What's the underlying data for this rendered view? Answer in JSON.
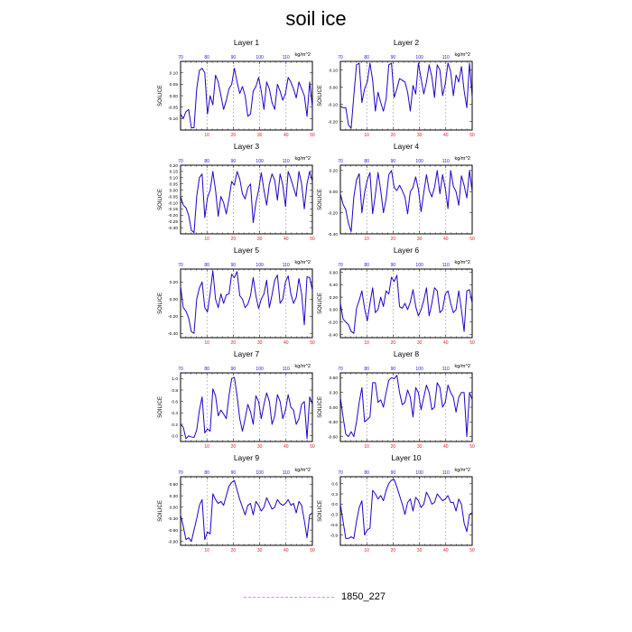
{
  "title": "soil ice",
  "legend": {
    "label": "1850_227",
    "color": "#d38be0"
  },
  "colors": {
    "line": "#2400c8",
    "bottom_ticks": "#e02020",
    "top_ticks": "#2020e0",
    "gridline": "#999999"
  },
  "chart_data": [
    {
      "type": "line",
      "title": "Layer 1",
      "ylabel": "SOILICE",
      "top_units": "kg/m^2",
      "xlim": [
        0,
        50
      ],
      "top_xlim": [
        70,
        120
      ],
      "x_ticks": [
        "10",
        "20",
        "30",
        "40",
        "50"
      ],
      "top_ticks": [
        "70",
        "80",
        "90",
        "100",
        "110"
      ],
      "ylim": [
        -0.15,
        0.15
      ],
      "y_ticks": [
        -0.1,
        -0.05,
        0.0,
        0.05,
        0.1
      ],
      "y_tick_labels": [
        "-0.10",
        "-0.05",
        "0.00",
        "0.05",
        "0.10"
      ],
      "series": [
        {
          "values": [
            -0.08,
            -0.1,
            -0.07,
            -0.06,
            -0.14,
            -0.14,
            0.03,
            0.11,
            0.12,
            0.1,
            -0.08,
            0.0,
            -0.04,
            0.09,
            0.06,
            0.0,
            -0.06,
            -0.02,
            0.03,
            0.05,
            0.12,
            0.06,
            0.01,
            0.04,
            0.0,
            -0.09,
            -0.08,
            0.02,
            0.04,
            0.08,
            0.02,
            -0.06,
            0.06,
            0.03,
            -0.03,
            -0.06,
            0.05,
            0.02,
            -0.02,
            0.01,
            0.08,
            0.06,
            0.03,
            -0.01,
            0.06,
            0.03,
            0.0,
            -0.09,
            0.06,
            -0.05
          ]
        }
      ]
    },
    {
      "type": "line",
      "title": "Layer 2",
      "ylabel": "SOILICE",
      "top_units": "kg/m^2",
      "xlim": [
        0,
        50
      ],
      "top_xlim": [
        70,
        120
      ],
      "x_ticks": [
        "10",
        "20",
        "30",
        "40",
        "50"
      ],
      "top_ticks": [
        "70",
        "80",
        "90",
        "100",
        "110"
      ],
      "ylim": [
        -0.25,
        0.15
      ],
      "y_ticks": [
        -0.2,
        -0.1,
        0.0,
        0.1
      ],
      "y_tick_labels": [
        "-0.20",
        "-0.10",
        "0.00",
        "0.10"
      ],
      "series": [
        {
          "values": [
            -0.11,
            -0.12,
            -0.12,
            -0.22,
            -0.24,
            -0.05,
            0.13,
            0.14,
            -0.09,
            -0.01,
            0.03,
            0.14,
            0.04,
            -0.14,
            -0.03,
            -0.09,
            -0.14,
            -0.07,
            0.13,
            0.14,
            -0.06,
            -0.01,
            0.05,
            0.04,
            0.03,
            -0.03,
            -0.14,
            0.01,
            -0.04,
            0.14,
            0.05,
            -0.04,
            0.03,
            0.13,
            0.06,
            -0.06,
            0.13,
            0.1,
            -0.05,
            0.02,
            0.14,
            0.09,
            -0.05,
            0.07,
            0.03,
            0.12,
            -0.02,
            -0.12,
            0.14,
            -0.06
          ]
        }
      ]
    },
    {
      "type": "line",
      "title": "Layer 3",
      "ylabel": "SOILICE",
      "top_units": "kg/m^2",
      "xlim": [
        0,
        50
      ],
      "top_xlim": [
        70,
        120
      ],
      "x_ticks": [
        "10",
        "20",
        "30",
        "40",
        "50"
      ],
      "top_ticks": [
        "70",
        "80",
        "90",
        "100",
        "110"
      ],
      "ylim": [
        -0.35,
        0.2
      ],
      "y_ticks": [
        -0.3,
        -0.25,
        -0.2,
        -0.15,
        -0.1,
        -0.05,
        0.0,
        0.05,
        0.1,
        0.15,
        0.2
      ],
      "y_tick_labels": [
        "-0.30",
        "-0.25",
        "-0.20",
        "-0.15",
        "-0.10",
        "-0.05",
        "0.00",
        "0.05",
        "0.10",
        "0.15",
        "0.20"
      ],
      "series": [
        {
          "values": [
            -0.05,
            -0.12,
            -0.14,
            -0.2,
            -0.32,
            -0.34,
            -0.05,
            0.1,
            0.13,
            -0.22,
            -0.06,
            0.0,
            0.15,
            0.0,
            -0.21,
            -0.05,
            -0.1,
            -0.19,
            -0.07,
            0.07,
            0.04,
            0.15,
            0.09,
            -0.03,
            -0.07,
            0.02,
            0.05,
            -0.26,
            -0.1,
            0.0,
            0.14,
            0.0,
            -0.12,
            0.05,
            0.13,
            0.08,
            -0.08,
            0.13,
            0.04,
            -0.13,
            0.15,
            0.09,
            0.02,
            -0.05,
            0.15,
            0.05,
            -0.15,
            0.05,
            0.15,
            0.07
          ]
        }
      ]
    },
    {
      "type": "line",
      "title": "Layer 4",
      "ylabel": "SOILICE",
      "top_units": "kg/m^2",
      "xlim": [
        0,
        50
      ],
      "top_xlim": [
        70,
        120
      ],
      "x_ticks": [
        "10",
        "20",
        "30",
        "40",
        "50"
      ],
      "top_ticks": [
        "70",
        "80",
        "90",
        "100",
        "110"
      ],
      "ylim": [
        -0.4,
        0.25
      ],
      "y_ticks": [
        -0.4,
        -0.2,
        0.0,
        0.2
      ],
      "y_tick_labels": [
        "-0.40",
        "-0.20",
        "0.00",
        "0.20"
      ],
      "series": [
        {
          "values": [
            -0.02,
            -0.12,
            -0.17,
            -0.3,
            -0.38,
            -0.05,
            0.11,
            0.17,
            -0.2,
            -0.01,
            0.11,
            0.18,
            -0.21,
            -0.03,
            0.18,
            0.01,
            -0.2,
            -0.07,
            0.16,
            0.2,
            0.04,
            0.01,
            0.06,
            0.01,
            -0.05,
            -0.21,
            0.0,
            0.04,
            0.14,
            0.02,
            -0.19,
            -0.01,
            0.16,
            0.01,
            -0.05,
            0.04,
            0.2,
            -0.02,
            0.16,
            0.03,
            -0.16,
            0.2,
            0.05,
            0.0,
            -0.13,
            0.15,
            0.06,
            -0.06,
            0.2,
            0.0
          ]
        }
      ]
    },
    {
      "type": "line",
      "title": "Layer 5",
      "ylabel": "SOILICE",
      "top_units": "kg/m^2",
      "xlim": [
        0,
        50
      ],
      "top_xlim": [
        70,
        120
      ],
      "x_ticks": [
        "10",
        "20",
        "30",
        "40",
        "50"
      ],
      "top_ticks": [
        "70",
        "80",
        "90",
        "100",
        "110"
      ],
      "ylim": [
        -0.45,
        0.35
      ],
      "y_ticks": [
        -0.4,
        -0.2,
        0.0,
        0.2
      ],
      "y_tick_labels": [
        "-0.40",
        "-0.20",
        "0.00",
        "0.20"
      ],
      "series": [
        {
          "values": [
            0.15,
            -0.1,
            -0.14,
            -0.22,
            -0.38,
            -0.4,
            0.0,
            0.13,
            0.2,
            -0.1,
            -0.15,
            0.07,
            0.33,
            0.0,
            -0.1,
            0.06,
            -0.05,
            0.05,
            0.06,
            0.29,
            0.25,
            0.32,
            0.04,
            0.0,
            -0.1,
            -0.06,
            0.04,
            0.25,
            0.04,
            -0.11,
            0.0,
            0.06,
            0.22,
            -0.1,
            0.05,
            0.22,
            0.28,
            -0.05,
            0.0,
            0.2,
            0.27,
            0.06,
            -0.05,
            0.02,
            0.24,
            0.06,
            -0.3,
            0.26,
            0.25,
            0.1
          ]
        }
      ]
    },
    {
      "type": "line",
      "title": "Layer 6",
      "ylabel": "SOILICE",
      "top_units": "kg/m^2",
      "xlim": [
        0,
        50
      ],
      "top_xlim": [
        70,
        120
      ],
      "x_ticks": [
        "10",
        "20",
        "30",
        "40",
        "50"
      ],
      "top_ticks": [
        "70",
        "80",
        "90",
        "100",
        "110"
      ],
      "ylim": [
        -0.45,
        0.65
      ],
      "y_ticks": [
        -0.4,
        -0.2,
        0.0,
        0.2,
        0.4,
        0.6
      ],
      "y_tick_labels": [
        "-0.40",
        "-0.20",
        "0.00",
        "0.20",
        "0.40",
        "0.60"
      ],
      "series": [
        {
          "values": [
            0.1,
            -0.15,
            -0.2,
            -0.24,
            -0.35,
            -0.38,
            0.02,
            0.15,
            0.3,
            0.02,
            -0.18,
            0.1,
            0.35,
            -0.05,
            0.0,
            0.2,
            0.05,
            0.3,
            0.25,
            0.52,
            0.45,
            0.55,
            0.05,
            0.02,
            0.1,
            0.0,
            0.12,
            0.32,
            0.05,
            -0.1,
            0.0,
            0.15,
            0.35,
            -0.1,
            0.1,
            0.35,
            0.3,
            -0.05,
            0.0,
            0.25,
            0.3,
            0.1,
            -0.05,
            0.0,
            0.3,
            0.0,
            -0.35,
            0.3,
            0.32,
            0.1
          ]
        }
      ]
    },
    {
      "type": "line",
      "title": "Layer 7",
      "ylabel": "SOILICE",
      "top_units": "kg/m^2",
      "xlim": [
        0,
        50
      ],
      "top_xlim": [
        70,
        120
      ],
      "x_ticks": [
        "10",
        "20",
        "30",
        "40",
        "50"
      ],
      "top_ticks": [
        "70",
        "80",
        "90",
        "100",
        "110"
      ],
      "ylim": [
        -0.1,
        1.1
      ],
      "y_ticks": [
        0.0,
        0.2,
        0.4,
        0.6,
        0.8,
        1.0
      ],
      "y_tick_labels": [
        "0.0",
        "0.2",
        "0.4",
        "0.6",
        "0.8",
        "1.0"
      ],
      "series": [
        {
          "values": [
            0.2,
            0.15,
            -0.05,
            0.0,
            -0.02,
            -0.03,
            0.1,
            0.45,
            0.68,
            0.05,
            0.12,
            0.08,
            0.82,
            0.7,
            0.35,
            0.45,
            0.38,
            0.3,
            0.7,
            1.0,
            1.02,
            0.7,
            0.3,
            0.08,
            0.3,
            0.55,
            0.42,
            0.2,
            0.7,
            0.6,
            0.3,
            0.55,
            0.75,
            0.6,
            0.2,
            0.35,
            0.72,
            0.6,
            0.3,
            0.45,
            0.72,
            0.5,
            0.45,
            0.2,
            0.3,
            0.55,
            0.6,
            -0.05,
            0.68,
            0.55
          ]
        }
      ]
    },
    {
      "type": "line",
      "title": "Layer 8",
      "ylabel": "SOILICE",
      "top_units": "kg/m^2",
      "xlim": [
        0,
        50
      ],
      "top_xlim": [
        70,
        120
      ],
      "x_ticks": [
        "10",
        "20",
        "30",
        "40",
        "50"
      ],
      "top_ticks": [
        "70",
        "80",
        "90",
        "100",
        "110"
      ],
      "ylim": [
        -0.7,
        0.7
      ],
      "y_ticks": [
        -0.6,
        -0.3,
        0.0,
        0.3,
        0.6
      ],
      "y_tick_labels": [
        "-0.60",
        "-0.30",
        "0.00",
        "0.30",
        "0.60"
      ],
      "series": [
        {
          "values": [
            0.2,
            -0.2,
            -0.55,
            -0.6,
            -0.5,
            -0.6,
            -0.3,
            0.1,
            0.4,
            -0.3,
            -0.25,
            -0.2,
            0.5,
            0.5,
            0.1,
            0.15,
            0.0,
            0.3,
            0.55,
            0.6,
            0.58,
            0.65,
            0.3,
            0.05,
            0.1,
            0.35,
            0.2,
            -0.2,
            0.4,
            0.3,
            -0.05,
            0.2,
            0.45,
            0.3,
            -0.05,
            0.0,
            0.5,
            0.4,
            0.0,
            0.1,
            0.45,
            0.3,
            0.2,
            -0.1,
            0.2,
            0.3,
            0.3,
            -0.6,
            0.3,
            0.15
          ]
        }
      ]
    },
    {
      "type": "line",
      "title": "Layer 9",
      "ylabel": "SOILICE",
      "top_units": "kg/m^2",
      "xlim": [
        0,
        50
      ],
      "top_xlim": [
        70,
        120
      ],
      "x_ticks": [
        "10",
        "20",
        "30",
        "40",
        "50"
      ],
      "top_ticks": [
        "70",
        "80",
        "90",
        "100",
        "110"
      ],
      "ylim": [
        -1.0,
        0.8
      ],
      "y_ticks": [
        -0.9,
        -0.6,
        -0.3,
        0.0,
        0.3,
        0.6
      ],
      "y_tick_labels": [
        "-0.90",
        "-0.60",
        "-0.30",
        "0.00",
        "0.30",
        "0.60"
      ],
      "series": [
        {
          "values": [
            -0.2,
            -0.5,
            -0.85,
            -0.8,
            -0.9,
            -0.6,
            -0.3,
            0.05,
            0.2,
            -0.85,
            -0.65,
            -0.7,
            0.35,
            0.2,
            0.1,
            0.15,
            0.05,
            0.3,
            0.55,
            0.65,
            0.7,
            0.45,
            0.2,
            0.0,
            -0.2,
            0.05,
            0.1,
            -0.2,
            0.15,
            0.05,
            -0.1,
            0.0,
            0.25,
            0.1,
            -0.05,
            0.0,
            0.2,
            0.1,
            0.05,
            0.1,
            0.2,
            0.05,
            0.1,
            -0.15,
            0.15,
            0.05,
            -0.35,
            -0.8,
            -0.2,
            -0.15
          ]
        }
      ]
    },
    {
      "type": "line",
      "title": "Layer 10",
      "ylabel": "SOILICE",
      "top_units": "kg/m^2",
      "xlim": [
        0,
        50
      ],
      "top_xlim": [
        70,
        120
      ],
      "x_ticks": [
        "10",
        "20",
        "30",
        "40",
        "50"
      ],
      "top_ticks": [
        "70",
        "80",
        "90",
        "100",
        "110"
      ],
      "ylim": [
        -1.2,
        0.8
      ],
      "y_ticks": [
        -0.9,
        -0.6,
        -0.3,
        0.0,
        0.3,
        0.6
      ],
      "y_tick_labels": [
        "-0.9",
        "-0.6",
        "-0.3",
        "0.0",
        "0.3",
        "0.6"
      ],
      "series": [
        {
          "values": [
            0.0,
            -0.5,
            -1.0,
            -1.0,
            -0.95,
            -1.0,
            -0.5,
            -0.1,
            0.1,
            -0.9,
            -0.75,
            -0.7,
            0.4,
            0.3,
            0.15,
            0.25,
            0.1,
            0.4,
            0.6,
            0.7,
            0.72,
            0.5,
            0.25,
            0.0,
            -0.3,
            0.05,
            0.15,
            -0.2,
            0.2,
            0.1,
            -0.1,
            0.0,
            0.35,
            0.2,
            0.0,
            0.05,
            0.3,
            0.2,
            0.1,
            0.15,
            0.25,
            0.05,
            0.05,
            -0.2,
            0.15,
            0.0,
            -0.55,
            -0.8,
            -0.3,
            -0.25
          ]
        }
      ]
    }
  ]
}
